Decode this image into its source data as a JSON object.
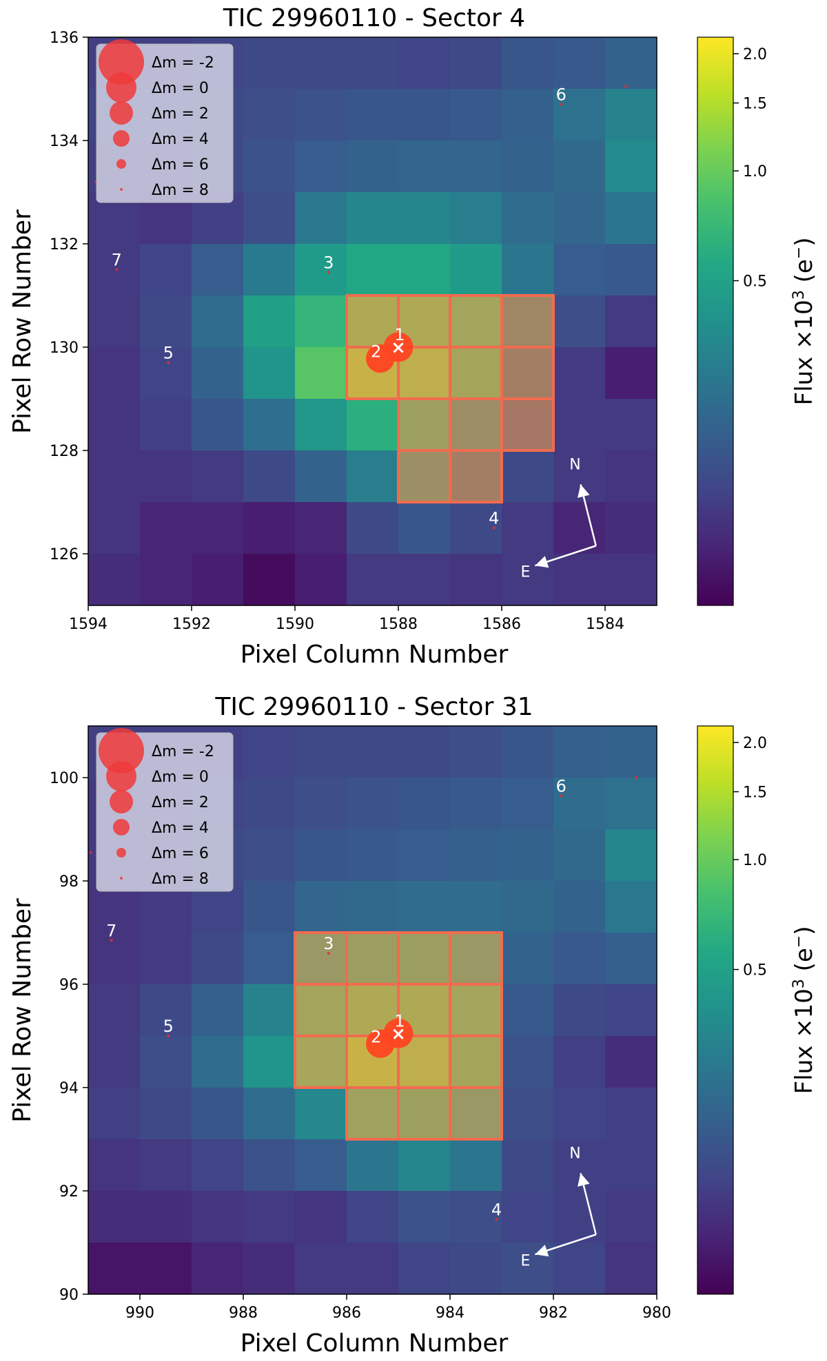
{
  "chart_data": [
    {
      "type": "heatmap",
      "title": "TIC 29960110 - Sector 4",
      "xlabel": "Pixel Column Number",
      "ylabel": "Pixel Row Number",
      "colorbar_label_main": "Flux ×10",
      "colorbar_label_exp": "3",
      "colorbar_label_unit": " (e",
      "colorbar_label_sup": "−",
      "colorbar_label_close": ")",
      "colormap": "viridis",
      "xlim": [
        1594,
        1583
      ],
      "ylim": [
        125,
        136
      ],
      "x_ticks": [
        1594,
        1592,
        1590,
        1588,
        1586,
        1584
      ],
      "x_tick_labels": [
        "1594",
        "1592",
        "1590",
        "1588",
        "1586",
        "1584"
      ],
      "y_ticks": [
        126,
        128,
        130,
        132,
        134,
        136
      ],
      "y_tick_labels": [
        "126",
        "128",
        "130",
        "132",
        "134",
        "136"
      ],
      "colorbar_ticks": [
        0.5,
        1.0,
        1.5,
        2.0
      ],
      "colorbar_tick_labels": [
        "0.5",
        "1.0",
        "1.5",
        "2.0"
      ],
      "colorbar_range": [
        0.0,
        2.2
      ],
      "grid": false,
      "legend_position": "top-left",
      "columns": [
        1594,
        1593,
        1592,
        1591,
        1590,
        1589,
        1588,
        1587,
        1586,
        1585,
        1584
      ],
      "rows": [
        136,
        135,
        134,
        133,
        132,
        131,
        130,
        129,
        128,
        127,
        126
      ],
      "flux_levels": [
        [
          0.08,
          0.08,
          0.09,
          0.1,
          0.1,
          0.1,
          0.09,
          0.1,
          0.13,
          0.14,
          0.17
        ],
        [
          0.09,
          0.09,
          0.1,
          0.11,
          0.12,
          0.13,
          0.13,
          0.14,
          0.16,
          0.22,
          0.3
        ],
        [
          0.08,
          0.08,
          0.1,
          0.12,
          0.15,
          0.17,
          0.18,
          0.18,
          0.17,
          0.19,
          0.34
        ],
        [
          0.07,
          0.06,
          0.08,
          0.11,
          0.25,
          0.32,
          0.32,
          0.28,
          0.2,
          0.18,
          0.24
        ],
        [
          0.07,
          0.09,
          0.15,
          0.26,
          0.45,
          0.55,
          0.55,
          0.45,
          0.24,
          0.15,
          0.14
        ],
        [
          0.07,
          0.1,
          0.2,
          0.48,
          0.68,
          0.85,
          0.85,
          0.68,
          0.24,
          0.11,
          0.07
        ],
        [
          0.06,
          0.09,
          0.17,
          0.4,
          0.9,
          1.2,
          1.05,
          0.7,
          0.17,
          0.07,
          0.03
        ],
        [
          0.06,
          0.08,
          0.13,
          0.21,
          0.42,
          0.62,
          0.6,
          0.3,
          0.12,
          0.07,
          0.07
        ],
        [
          0.06,
          0.06,
          0.07,
          0.1,
          0.17,
          0.28,
          0.33,
          0.17,
          0.1,
          0.07,
          0.06
        ],
        [
          0.06,
          0.04,
          0.04,
          0.03,
          0.04,
          0.1,
          0.13,
          0.1,
          0.07,
          0.04,
          0.05
        ],
        [
          0.05,
          0.04,
          0.03,
          0.01,
          0.03,
          0.07,
          0.07,
          0.06,
          0.07,
          0.06,
          0.06
        ]
      ],
      "aperture_pixels": [
        [
          1589,
          131
        ],
        [
          1588,
          131
        ],
        [
          1587,
          131
        ],
        [
          1586,
          131
        ],
        [
          1589,
          130
        ],
        [
          1588,
          130
        ],
        [
          1587,
          130
        ],
        [
          1586,
          130
        ],
        [
          1588,
          129
        ],
        [
          1587,
          129
        ],
        [
          1586,
          129
        ],
        [
          1588,
          128
        ],
        [
          1587,
          128
        ]
      ],
      "stars": [
        {
          "label": "1",
          "x": 1588.0,
          "y": 130.0,
          "dm": 0.2
        },
        {
          "label": "2",
          "x": 1588.35,
          "y": 129.78,
          "dm": 0.5
        },
        {
          "label": "3",
          "x": 1589.35,
          "y": 131.45,
          "dm": 8
        },
        {
          "label": "4",
          "x": 1586.15,
          "y": 126.5,
          "dm": 8
        },
        {
          "label": "5",
          "x": 1592.45,
          "y": 129.7,
          "dm": 8
        },
        {
          "label": "6",
          "x": 1584.85,
          "y": 134.7,
          "dm": 8
        },
        {
          "label": "7",
          "x": 1593.45,
          "y": 131.5,
          "dm": 8
        },
        {
          "label": "",
          "x": 1583.6,
          "y": 135.05,
          "dm": 8
        },
        {
          "label": "",
          "x": 1593.85,
          "y": 133.2,
          "dm": 8
        }
      ],
      "target_marker": "×",
      "compass": {
        "north_label": "N",
        "east_label": "E"
      },
      "legend_entries": [
        {
          "text": "Δm =  -2",
          "dm": -2
        },
        {
          "text": "Δm =  0",
          "dm": 0
        },
        {
          "text": "Δm =  2",
          "dm": 2
        },
        {
          "text": "Δm =  4",
          "dm": 4
        },
        {
          "text": "Δm =  6",
          "dm": 6
        },
        {
          "text": "Δm =  8",
          "dm": 8
        }
      ]
    },
    {
      "type": "heatmap",
      "title": "TIC 29960110 - Sector 31",
      "xlabel": "Pixel Column Number",
      "ylabel": "Pixel Row Number",
      "colorbar_label_main": "Flux ×10",
      "colorbar_label_exp": "3",
      "colorbar_label_unit": " (e",
      "colorbar_label_sup": "−",
      "colorbar_label_close": ")",
      "colormap": "viridis",
      "xlim": [
        991,
        980
      ],
      "ylim": [
        90,
        101
      ],
      "x_ticks": [
        990,
        988,
        986,
        984,
        982,
        980
      ],
      "x_tick_labels": [
        "990",
        "988",
        "986",
        "984",
        "982",
        "980"
      ],
      "y_ticks": [
        90,
        92,
        94,
        96,
        98,
        100
      ],
      "y_tick_labels": [
        "90",
        "92",
        "94",
        "96",
        "98",
        "100"
      ],
      "colorbar_ticks": [
        0.5,
        1.0,
        1.5,
        2.0
      ],
      "colorbar_tick_labels": [
        "0.5",
        "1.0",
        "1.5",
        "2.0"
      ],
      "colorbar_range": [
        0.0,
        2.2
      ],
      "grid": false,
      "legend_position": "top-left",
      "columns": [
        991,
        990,
        989,
        988,
        987,
        986,
        985,
        984,
        983,
        982,
        981
      ],
      "rows": [
        101,
        100,
        99,
        98,
        97,
        96,
        95,
        94,
        93,
        92,
        91
      ],
      "flux_levels": [
        [
          0.08,
          0.08,
          0.08,
          0.09,
          0.1,
          0.1,
          0.1,
          0.11,
          0.13,
          0.16,
          0.17
        ],
        [
          0.07,
          0.08,
          0.09,
          0.1,
          0.11,
          0.12,
          0.13,
          0.14,
          0.15,
          0.2,
          0.22
        ],
        [
          0.07,
          0.08,
          0.1,
          0.11,
          0.13,
          0.14,
          0.15,
          0.16,
          0.17,
          0.19,
          0.32
        ],
        [
          0.06,
          0.07,
          0.09,
          0.13,
          0.18,
          0.19,
          0.2,
          0.2,
          0.19,
          0.17,
          0.25
        ],
        [
          0.06,
          0.07,
          0.1,
          0.15,
          0.45,
          0.55,
          0.55,
          0.45,
          0.17,
          0.14,
          0.16
        ],
        [
          0.07,
          0.1,
          0.16,
          0.3,
          0.68,
          0.85,
          0.85,
          0.68,
          0.14,
          0.1,
          0.09
        ],
        [
          0.07,
          0.11,
          0.2,
          0.4,
          0.75,
          1.2,
          1.05,
          0.7,
          0.12,
          0.08,
          0.05
        ],
        [
          0.08,
          0.1,
          0.13,
          0.2,
          0.33,
          0.62,
          0.6,
          0.45,
          0.11,
          0.09,
          0.08
        ],
        [
          0.06,
          0.07,
          0.09,
          0.12,
          0.15,
          0.24,
          0.31,
          0.24,
          0.1,
          0.08,
          0.08
        ],
        [
          0.05,
          0.05,
          0.06,
          0.07,
          0.06,
          0.09,
          0.12,
          0.11,
          0.09,
          0.08,
          0.07
        ],
        [
          0.02,
          0.02,
          0.04,
          0.05,
          0.07,
          0.07,
          0.09,
          0.1,
          0.11,
          0.09,
          0.06
        ]
      ],
      "aperture_pixels": [
        [
          987,
          97
        ],
        [
          986,
          97
        ],
        [
          985,
          97
        ],
        [
          984,
          97
        ],
        [
          987,
          96
        ],
        [
          986,
          96
        ],
        [
          985,
          96
        ],
        [
          984,
          96
        ],
        [
          987,
          95
        ],
        [
          986,
          95
        ],
        [
          985,
          95
        ],
        [
          984,
          95
        ],
        [
          986,
          94
        ],
        [
          985,
          94
        ],
        [
          984,
          94
        ]
      ],
      "stars": [
        {
          "label": "1",
          "x": 985.0,
          "y": 95.05,
          "dm": 0.2
        },
        {
          "label": "2",
          "x": 985.35,
          "y": 94.85,
          "dm": 0.5
        },
        {
          "label": "3",
          "x": 986.35,
          "y": 96.6,
          "dm": 8
        },
        {
          "label": "4",
          "x": 983.1,
          "y": 91.45,
          "dm": 8
        },
        {
          "label": "5",
          "x": 989.45,
          "y": 95.0,
          "dm": 8
        },
        {
          "label": "6",
          "x": 981.85,
          "y": 99.65,
          "dm": 8
        },
        {
          "label": "7",
          "x": 990.55,
          "y": 96.85,
          "dm": 8
        },
        {
          "label": "",
          "x": 980.4,
          "y": 100.0,
          "dm": 8
        },
        {
          "label": "",
          "x": 990.95,
          "y": 98.55,
          "dm": 8
        }
      ],
      "target_marker": "×",
      "compass": {
        "north_label": "N",
        "east_label": "E"
      },
      "legend_entries": [
        {
          "text": "Δm =  -2",
          "dm": -2
        },
        {
          "text": "Δm =  0",
          "dm": 0
        },
        {
          "text": "Δm =  2",
          "dm": 2
        },
        {
          "text": "Δm =  4",
          "dm": 4
        },
        {
          "text": "Δm =  6",
          "dm": 6
        },
        {
          "text": "Δm =  8",
          "dm": 8
        }
      ]
    }
  ]
}
